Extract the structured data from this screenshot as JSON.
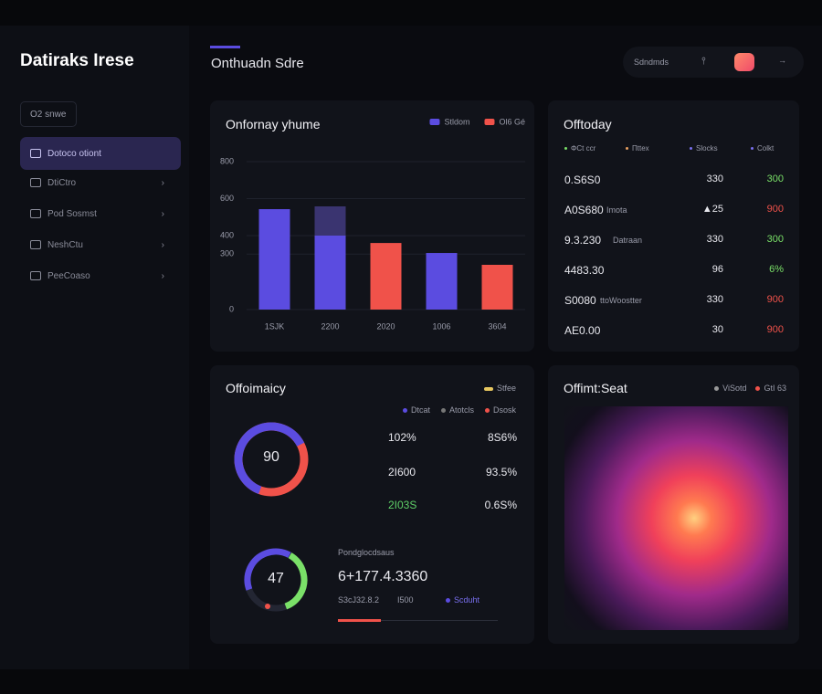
{
  "sidebar": {
    "title": "Datiraks Irese",
    "search": "O2 snwe",
    "nav": [
      "Dotoco otiont",
      "DtiCtro",
      "Pod Sosmst",
      "NeshCtu",
      "PeeCoaso"
    ]
  },
  "header": {
    "title": "Onthuadn Sdre",
    "pill": "Sdndmds"
  },
  "bar_panel": {
    "chart_data": {
      "type": "bar",
      "title": "Onfornay yhume",
      "categories": [
        "1SJK",
        "2200",
        "2020",
        "1006",
        "3604"
      ],
      "series": [
        {
          "name": "Stldom",
          "color": "#5b4ce0",
          "values": [
            543,
            400,
            null,
            306,
            null
          ]
        },
        {
          "color": "#3a3470",
          "values": [
            null,
            158,
            null,
            null,
            null
          ]
        },
        {
          "name": "Ol6 Gé",
          "color": "#f0524a",
          "values": [
            null,
            null,
            360,
            null,
            242
          ]
        }
      ],
      "ylim": [
        0,
        800
      ],
      "yticks": [
        0,
        300,
        400,
        600,
        800
      ],
      "grid": true
    }
  },
  "table_panel": {
    "title": "Offtoday",
    "columns": [
      "ΦCt ccr",
      "Πttex",
      "Slocks",
      "Colkt"
    ],
    "rows": [
      [
        "0.S6S0",
        "",
        "330",
        "300"
      ],
      [
        "A0S680",
        "Imota",
        "▲25",
        "900"
      ],
      [
        "9.3.230",
        "Datraan",
        "330",
        "300"
      ],
      [
        "4483.30",
        "",
        "96",
        "6%"
      ],
      [
        "S0080",
        "ttoWoostter",
        "330",
        "900"
      ],
      [
        "AE0.00",
        "",
        "30",
        "900"
      ]
    ]
  },
  "kpi_panel": {
    "title": "Offoimaicy",
    "legend": "Stfee",
    "sub_legend": [
      "Dtcat",
      "Atotcls",
      "Dsosk"
    ],
    "donut1": "90",
    "stats": [
      [
        "102%",
        "8S6%"
      ],
      [
        "2I600",
        "93.5%"
      ],
      [
        "2I03S",
        "0.6S%"
      ]
    ],
    "donut2": "47",
    "caption": "Pondglocdsaus",
    "big_value": "6+177.4.3360",
    "foot": [
      "S3cJ32.8.2",
      "I500",
      "Scduht"
    ]
  },
  "heat_panel": {
    "title": "Offimt:Seat",
    "legend": [
      "ViSotd",
      "GtI 63"
    ]
  }
}
